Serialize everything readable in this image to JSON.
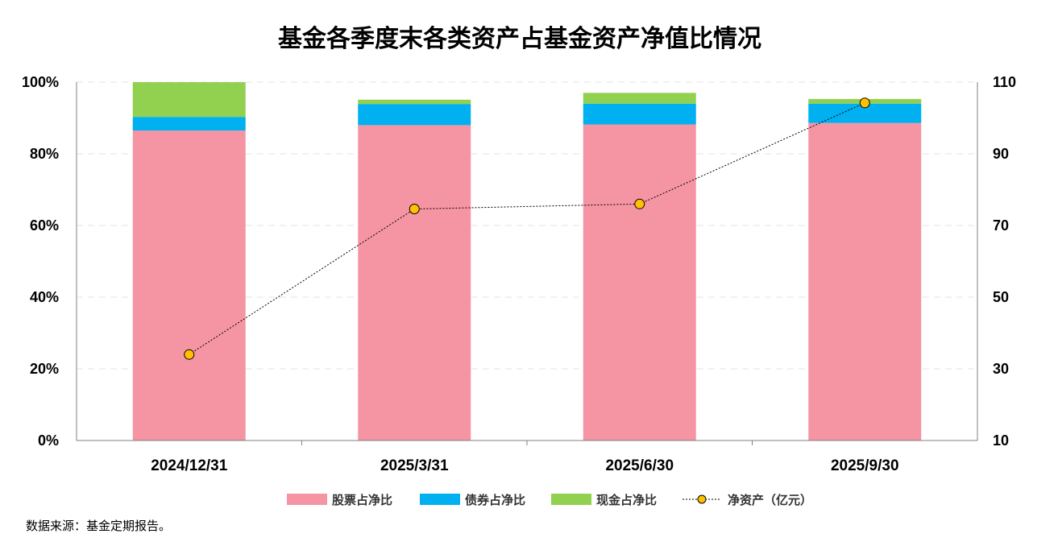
{
  "chart_data": {
    "type": "bar",
    "title": "基金各季度末各类资产占基金资产净值比情况",
    "categories": [
      "2024/12/31",
      "2025/3/31",
      "2025/6/30",
      "2025/9/30"
    ],
    "series": [
      {
        "name": "股票占净比",
        "kind": "stacked-bar",
        "axis": "left",
        "values": [
          86.5,
          88.0,
          88.2,
          88.6
        ],
        "color": "#F595A3"
      },
      {
        "name": "债券占净比",
        "kind": "stacked-bar",
        "axis": "left",
        "values": [
          3.8,
          5.9,
          5.8,
          5.4
        ],
        "color": "#00B0F0"
      },
      {
        "name": "现金占净比",
        "kind": "stacked-bar",
        "axis": "left",
        "values": [
          9.7,
          1.2,
          3.0,
          1.3
        ],
        "color": "#92D050"
      },
      {
        "name": "净资产（亿元）",
        "kind": "line",
        "axis": "right",
        "values": [
          34.0,
          74.6,
          76.0,
          104.2
        ],
        "color": "#FFC000"
      }
    ],
    "y_left": {
      "min": 0,
      "max": 100,
      "ticks": [
        "0%",
        "20%",
        "40%",
        "60%",
        "80%",
        "100%"
      ]
    },
    "y_right": {
      "min": 10,
      "max": 110,
      "ticks": [
        "10",
        "30",
        "50",
        "70",
        "90",
        "110"
      ]
    },
    "grid": true,
    "legend_position": "bottom",
    "source": "数据来源：基金定期报告。"
  }
}
